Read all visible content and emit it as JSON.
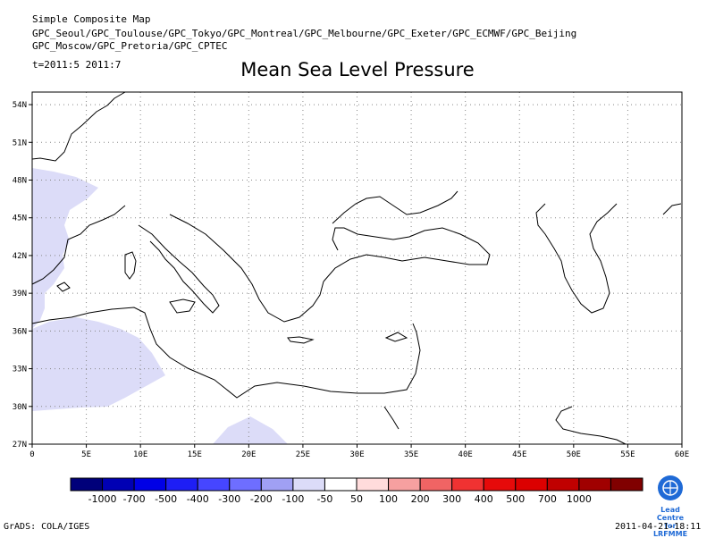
{
  "header": {
    "line1": "Simple Composite Map",
    "line2": "GPC_Seoul/GPC_Toulouse/GPC_Tokyo/GPC_Montreal/GPC_Melbourne/GPC_Exeter/GPC_ECMWF/GPC_Beijing",
    "line3": "GPC_Moscow/GPC_Pretoria/GPC_CPTEC",
    "time": "t=2011:5 2011:7"
  },
  "title": "Mean Sea Level Pressure",
  "map": {
    "lat_ticks": [
      "54N",
      "51N",
      "48N",
      "45N",
      "42N",
      "39N",
      "36N",
      "33N",
      "30N",
      "27N"
    ],
    "lon_ticks": [
      "0",
      "5E",
      "10E",
      "15E",
      "20E",
      "25E",
      "30E",
      "35E",
      "40E",
      "45E",
      "50E",
      "55E",
      "60E"
    ],
    "lat_range": [
      27,
      55
    ],
    "lon_range": [
      0,
      60
    ],
    "grid": "dotted",
    "anomaly_color": "#dcdcf8"
  },
  "legend": {
    "colors": [
      "#00007a",
      "#0000b4",
      "#0000e6",
      "#1e1ef5",
      "#4646ff",
      "#6e6eff",
      "#a0a0f4",
      "#dcdcf8",
      "#ffffff",
      "#ffdcdc",
      "#f6a0a0",
      "#f06464",
      "#f03232",
      "#e60a0a",
      "#dc0000",
      "#c00000",
      "#a00000",
      "#800000"
    ],
    "labels": [
      "-1000",
      "-700",
      "-500",
      "-400",
      "-300",
      "-200",
      "-100",
      "-50",
      "50",
      "100",
      "200",
      "300",
      "400",
      "500",
      "700",
      "1000"
    ]
  },
  "logo": {
    "line1": "Lead Centre",
    "line2": "for LRFMME",
    "icon": "wmo-emblem-icon"
  },
  "footer": {
    "left": "GrADS: COLA/IGES",
    "right": "2011-04-21-18:11"
  }
}
